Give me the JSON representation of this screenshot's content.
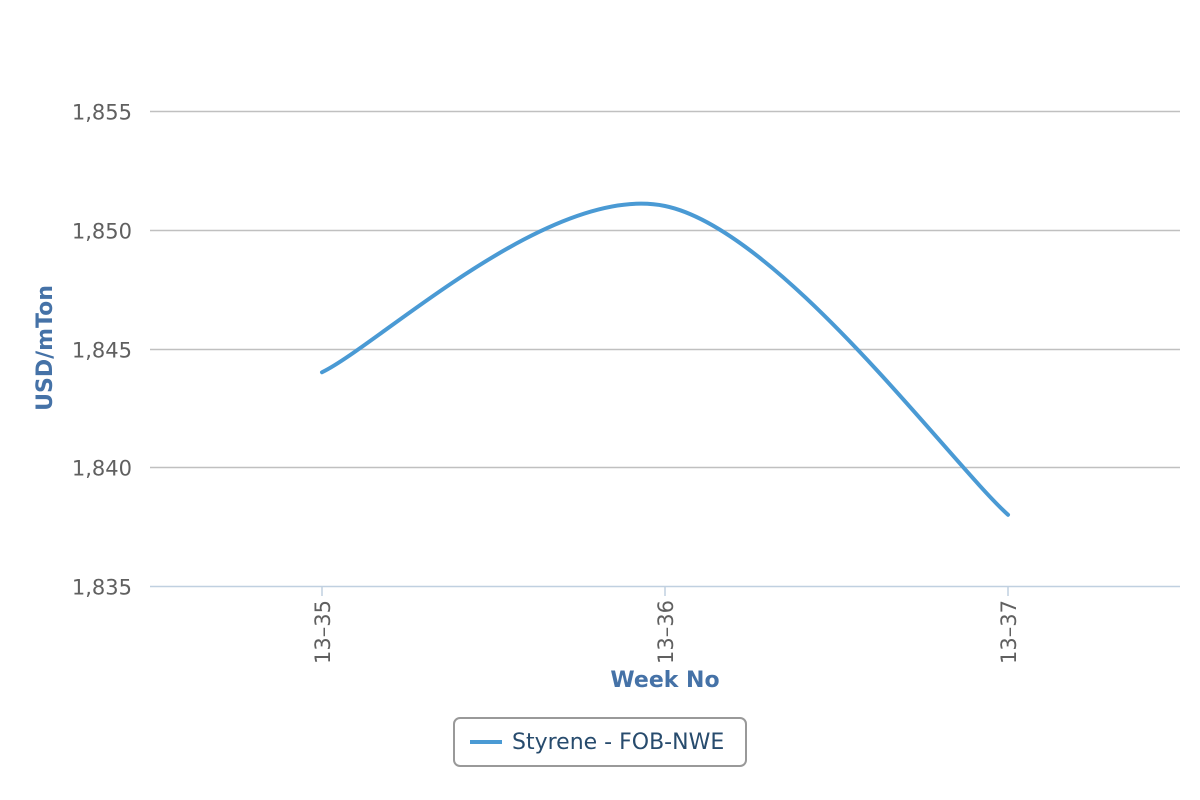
{
  "chart_data": {
    "type": "line",
    "title": "",
    "xlabel": "Week No",
    "ylabel": "USD/mTon",
    "categories": [
      "13-35",
      "13-36",
      "13-37"
    ],
    "series": [
      {
        "name": "Styrene - FOB-NWE",
        "values": [
          1844,
          1851,
          1838
        ],
        "color": "#4a9ad4"
      }
    ],
    "ylim": [
      1835,
      1855
    ],
    "yticks": [
      "1,835",
      "1,840",
      "1,845",
      "1,850",
      "1,855"
    ],
    "grid": true,
    "smooth": true,
    "legend_position": "bottom-center"
  },
  "colors": {
    "line": "#4a9ad4",
    "axis_title": "#4572a7",
    "tick_label": "#606060",
    "gridline": "#c0c0c0",
    "axis_line": "#c0d0e0",
    "legend_text": "#274b6d",
    "legend_border": "#999999"
  }
}
